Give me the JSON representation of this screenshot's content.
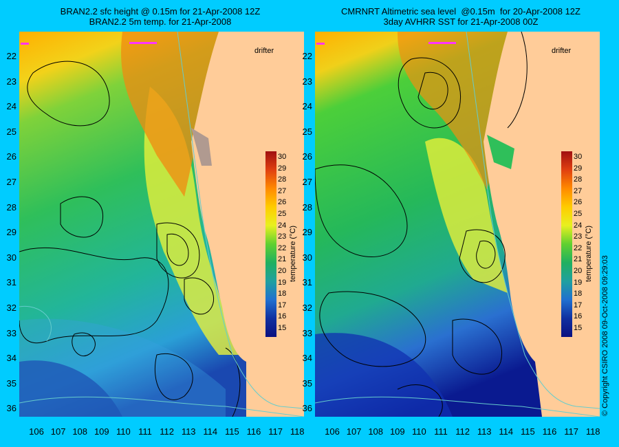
{
  "left_panel": {
    "title_line1": "BRAN2.2 sfc height @ 0.15m for 21-Apr-2008 12Z",
    "title_line2": "BRAN2.2 5m temp. for 21-Apr-2008",
    "drifter_label": "drifter"
  },
  "right_panel": {
    "title_line1": "CMRNRT Altimetric sea level  @0.15m  for 20-Apr-2008 12Z",
    "title_line2": "3day AVHRR SST for 21-Apr-2008 00Z",
    "drifter_label": "drifter"
  },
  "lat_labels": [
    "22",
    "23",
    "24",
    "25",
    "26",
    "27",
    "28",
    "29",
    "30",
    "31",
    "32",
    "33",
    "34",
    "35",
    "36"
  ],
  "lon_labels": [
    "106",
    "107",
    "108",
    "109",
    "110",
    "111",
    "112",
    "113",
    "114",
    "115",
    "116",
    "117",
    "118"
  ],
  "colorbar": {
    "title": "temperature (°C)",
    "ticks": [
      "30",
      "29",
      "28",
      "27",
      "26",
      "25",
      "24",
      "23",
      "22",
      "21",
      "20",
      "19",
      "18",
      "17",
      "16",
      "15"
    ]
  },
  "copyright": "© Copyright CSIRO 2008   09-Oct-2008 09:29:03",
  "colors": {
    "background": "#00ccff",
    "land": "#ffcc99",
    "contour": "#000000",
    "isobath": "#66cccc",
    "drifter": "#ff33ff"
  }
}
